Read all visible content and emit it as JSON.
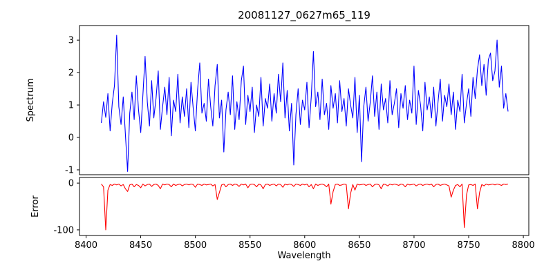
{
  "figure": {
    "background": "#ffffff",
    "title": "20081127_0627m65_119"
  },
  "chart_data": [
    {
      "type": "line",
      "name": "spectrum",
      "title": "20081127_0627m65_119",
      "ylabel": "Spectrum",
      "color": "#0000ff",
      "xlim": [
        8394,
        8805
      ],
      "ylim": [
        -1.15,
        3.45
      ],
      "yticks": [
        -1,
        0,
        1,
        2,
        3
      ],
      "x_start": 8414,
      "x_step": 2,
      "values": [
        0.45,
        1.1,
        0.62,
        1.35,
        0.2,
        1.05,
        1.6,
        3.15,
        0.95,
        0.4,
        1.25,
        0.1,
        -1.05,
        0.75,
        1.4,
        0.55,
        1.9,
        0.85,
        0.15,
        1.3,
        2.5,
        1.1,
        0.35,
        1.75,
        0.6,
        1.2,
        2.05,
        0.25,
        0.95,
        1.55,
        0.7,
        1.85,
        0.05,
        1.15,
        0.8,
        1.95,
        0.45,
        1.25,
        0.65,
        1.5,
        0.3,
        1.7,
        0.9,
        0.2,
        1.45,
        2.3,
        0.75,
        1.05,
        0.5,
        1.8,
        0.95,
        0.35,
        1.6,
        2.25,
        0.6,
        1.15,
        -0.45,
        0.85,
        1.4,
        0.7,
        1.9,
        0.25,
        1.1,
        0.55,
        1.75,
        2.2,
        0.4,
        1.3,
        0.8,
        1.55,
        0.15,
        1.0,
        0.65,
        1.85,
        0.35,
        1.2,
        0.9,
        1.65,
        0.5,
        1.35,
        0.75,
        1.95,
        1.1,
        2.3,
        0.6,
        1.45,
        0.2,
        1.05,
        -0.85,
        0.7,
        1.5,
        0.4,
        1.15,
        0.85,
        1.7,
        0.3,
        1.25,
        2.65,
        0.95,
        1.4,
        0.55,
        1.8,
        0.7,
        1.05,
        0.25,
        1.6,
        0.9,
        1.35,
        0.45,
        1.75,
        0.8,
        1.2,
        0.35,
        1.5,
        1.0,
        0.6,
        1.85,
        0.15,
        1.3,
        -0.75,
        0.95,
        1.55,
        0.5,
        1.1,
        1.9,
        0.65,
        1.4,
        0.25,
        1.65,
        0.85,
        1.2,
        0.45,
        1.75,
        0.7,
        1.05,
        1.5,
        0.3,
        1.35,
        0.9,
        1.6,
        0.55,
        1.15,
        0.75,
        2.2,
        0.4,
        1.45,
        1.0,
        0.2,
        1.7,
        0.85,
        1.25,
        0.6,
        1.55,
        0.35,
        1.1,
        1.8,
        0.5,
        1.3,
        0.95,
        1.65,
        0.7,
        1.4,
        0.25,
        1.15,
        0.8,
        1.95,
        0.45,
        1.05,
        1.5,
        0.65,
        1.85,
        1.2,
        2.1,
        2.55,
        1.6,
        2.25,
        1.3,
        2.4,
        2.6,
        1.75,
        2.05,
        3.0,
        1.55,
        2.2,
        0.9,
        1.35,
        0.8
      ]
    },
    {
      "type": "line",
      "name": "error",
      "ylabel": "Error",
      "xlabel": "Wavelength",
      "color": "#ff0000",
      "xlim": [
        8394,
        8805
      ],
      "ylim": [
        -112,
        12
      ],
      "yticks": [
        0,
        -100
      ],
      "xticks": [
        8400,
        8450,
        8500,
        8550,
        8600,
        8650,
        8700,
        8750,
        8800
      ],
      "x_start": 8414,
      "x_step": 2,
      "values": [
        -2,
        -8,
        -100,
        -15,
        -3,
        -5,
        -2,
        -4,
        -2,
        -6,
        -3,
        -12,
        -18,
        -4,
        -2,
        -8,
        -3,
        -5,
        -10,
        -2,
        -6,
        -3,
        -2,
        -7,
        -3,
        -2,
        -5,
        -12,
        -2,
        -4,
        -2,
        -3,
        -8,
        -2,
        -5,
        -3,
        -2,
        -6,
        -3,
        -2,
        -4,
        -2,
        -3,
        -9,
        -2,
        -3,
        -5,
        -2,
        -4,
        -3,
        -2,
        -6,
        -3,
        -35,
        -20,
        -4,
        -2,
        -8,
        -3,
        -2,
        -5,
        -2,
        -3,
        -7,
        -2,
        -4,
        -2,
        -10,
        -3,
        -2,
        -3,
        -8,
        -2,
        -4,
        -12,
        -3,
        -2,
        -5,
        -3,
        -2,
        -6,
        -2,
        -3,
        -9,
        -2,
        -4,
        -2,
        -3,
        -7,
        -2,
        -3,
        -5,
        -2,
        -4,
        -2,
        -8,
        -3,
        -12,
        -2,
        -5,
        -3,
        -2,
        -4,
        -8,
        -2,
        -45,
        -18,
        -3,
        -2,
        -5,
        -4,
        -2,
        -3,
        -55,
        -22,
        -3,
        -15,
        -2,
        -4,
        -3,
        -2,
        -5,
        -3,
        -2,
        -8,
        -3,
        -2,
        -4,
        -12,
        -2,
        -3,
        -6,
        -2,
        -4,
        -2,
        -3,
        -5,
        -2,
        -3,
        -8,
        -2,
        -4,
        -3,
        -2,
        -6,
        -3,
        -2,
        -5,
        -3,
        -2,
        -4,
        -2,
        -8,
        -3,
        -2,
        -5,
        -3,
        -2,
        -4,
        -6,
        -30,
        -15,
        -5,
        -3,
        -8,
        -2,
        -95,
        -25,
        -4,
        -3,
        -5,
        -2,
        -55,
        -20,
        -3,
        -6,
        -2,
        -4,
        -3,
        -2,
        -4,
        -2,
        -3,
        -5,
        -2,
        -3,
        -2
      ]
    }
  ]
}
